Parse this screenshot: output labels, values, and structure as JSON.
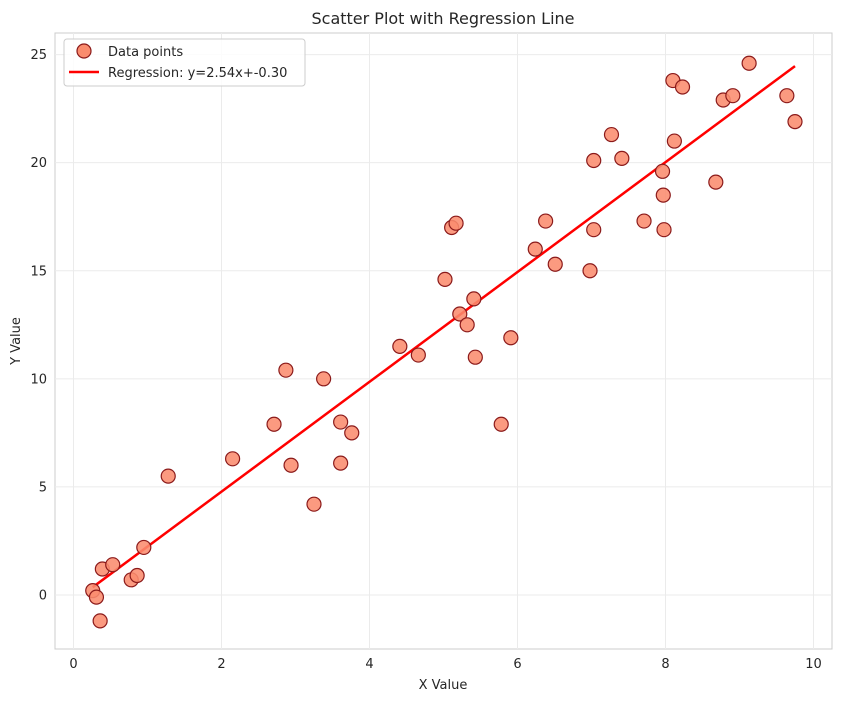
{
  "chart_data": {
    "type": "scatter",
    "title": "Scatter Plot with Regression Line",
    "xlabel": "X Value",
    "ylabel": "Y Value",
    "xlim": [
      -0.25,
      10.25
    ],
    "ylim": [
      -2.5,
      26.0
    ],
    "xticks": [
      0,
      2,
      4,
      6,
      8,
      10
    ],
    "yticks": [
      0,
      5,
      10,
      15,
      20,
      25
    ],
    "grid": true,
    "legend_position": "top-left",
    "series": [
      {
        "name": "Data points",
        "kind": "scatter",
        "color": "#FA8C6E",
        "edge_color": "#8B1A1A",
        "x": [
          0.26,
          0.31,
          0.36,
          0.39,
          0.53,
          0.78,
          0.86,
          0.95,
          1.28,
          2.15,
          2.71,
          2.87,
          2.94,
          3.25,
          3.38,
          3.61,
          3.61,
          3.76,
          4.41,
          4.66,
          5.02,
          5.11,
          5.17,
          5.22,
          5.32,
          5.41,
          5.43,
          5.78,
          5.91,
          6.24,
          6.38,
          6.51,
          6.98,
          7.03,
          7.03,
          7.27,
          7.41,
          7.71,
          7.96,
          7.97,
          7.98,
          8.1,
          8.12,
          8.23,
          8.68,
          8.78,
          8.91,
          9.13,
          9.64,
          9.75
        ],
        "y": [
          0.2,
          -0.1,
          -1.2,
          1.2,
          1.4,
          0.7,
          0.9,
          2.2,
          5.5,
          6.3,
          7.9,
          10.4,
          6.0,
          4.2,
          10.0,
          8.0,
          6.1,
          7.5,
          11.5,
          11.1,
          14.6,
          17.0,
          17.2,
          13.0,
          12.5,
          13.7,
          11.0,
          7.9,
          11.9,
          16.0,
          17.3,
          15.3,
          15.0,
          20.1,
          16.9,
          21.3,
          20.2,
          17.3,
          19.6,
          18.5,
          16.9,
          23.8,
          21.0,
          23.5,
          19.1,
          22.9,
          23.1,
          24.6,
          23.1,
          21.9
        ]
      },
      {
        "name": "Regression: y=2.54x+-0.30",
        "kind": "line",
        "color": "#FF0000",
        "x": [
          0.26,
          9.75
        ],
        "y": [
          0.36,
          24.47
        ]
      }
    ]
  }
}
